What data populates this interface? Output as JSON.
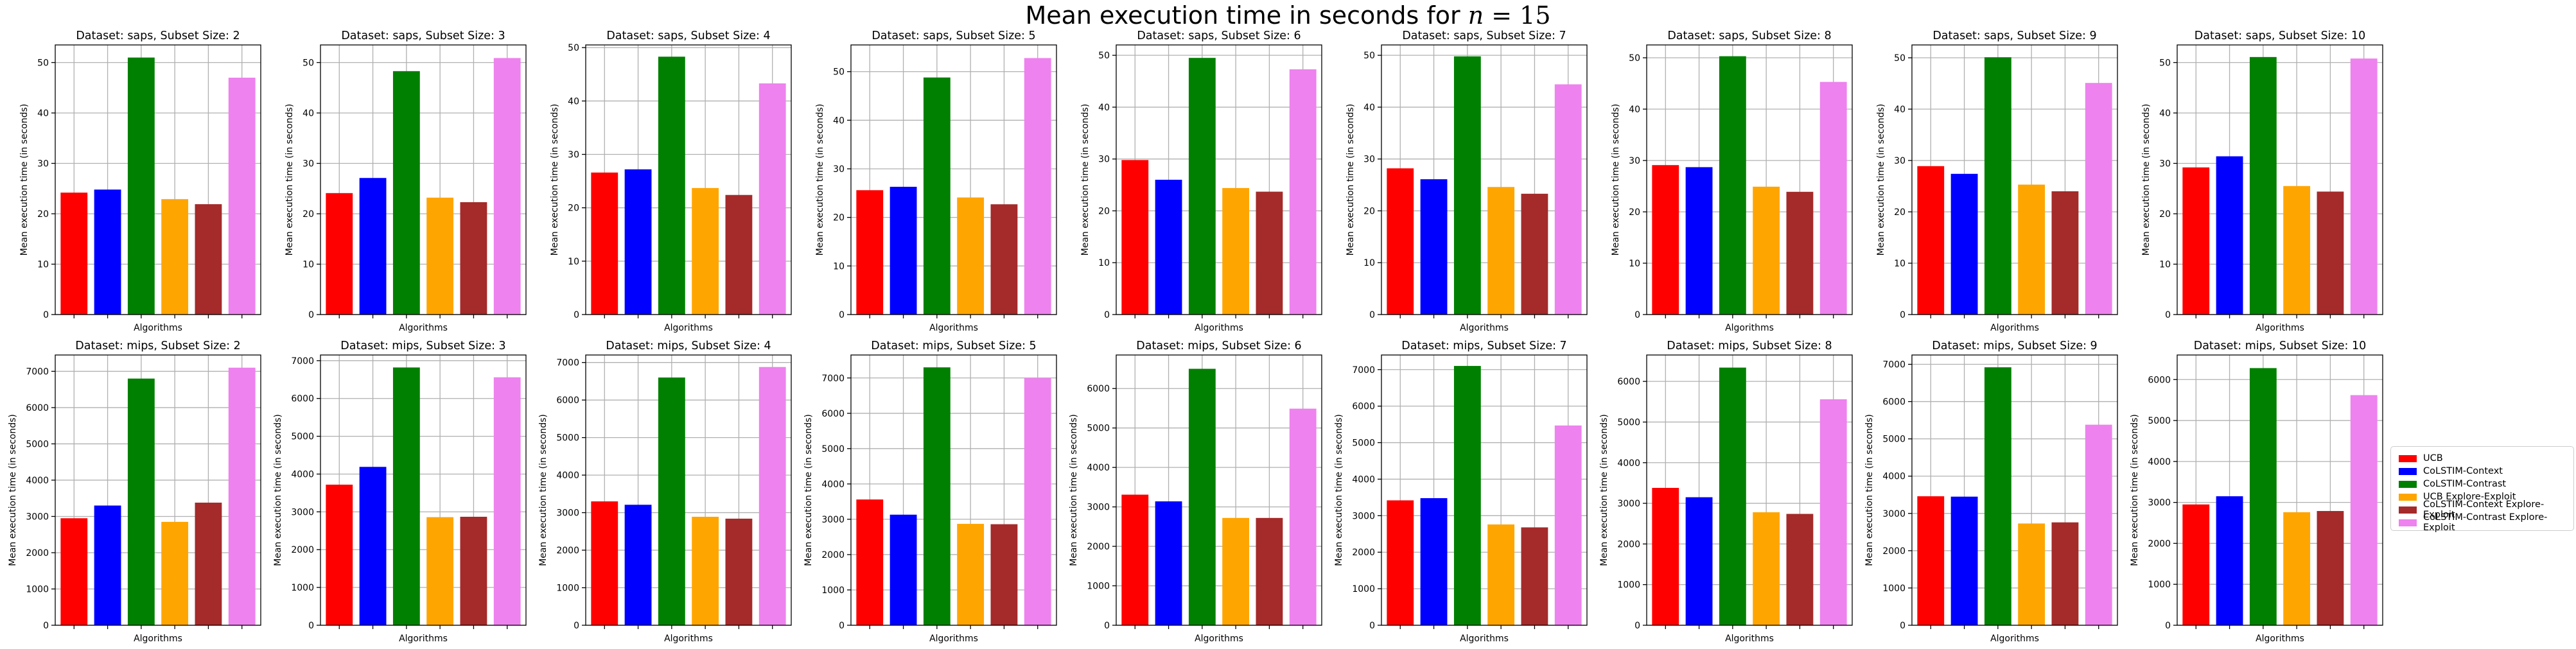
{
  "suptitle": {
    "text": "Mean execution time in seconds for ",
    "math_var": "n",
    "math_eq": " = 15"
  },
  "legend": {
    "placement": "right",
    "items": [
      {
        "label": "UCB",
        "color": "#ff0000"
      },
      {
        "label": "CoLSTIM-Context",
        "color": "#0000ff"
      },
      {
        "label": "CoLSTIM-Contrast",
        "color": "#008000"
      },
      {
        "label": "UCB Explore-Exploit",
        "color": "#ffa500"
      },
      {
        "label": "CoLSTIM-Context Explore-Exploit",
        "color": "#a52a2a"
      },
      {
        "label": "CoLSTIM-Contrast Explore-Exploit",
        "color": "#ee82ee"
      }
    ]
  },
  "chart_data": [
    {
      "type": "bar",
      "title": "Dataset: saps, Subset Size: 2",
      "xlabel": "Algorithms",
      "ylabel": "Mean execution time (in seconds)",
      "ylim": [
        0,
        53.5
      ],
      "yticks": [
        0,
        10,
        20,
        30,
        40,
        50
      ],
      "grid": true,
      "values": [
        24.2,
        24.8,
        51.0,
        22.9,
        21.9,
        47.0
      ]
    },
    {
      "type": "bar",
      "title": "Dataset: saps, Subset Size: 3",
      "xlabel": "Algorithms",
      "ylabel": "Mean execution time (in seconds)",
      "ylim": [
        0,
        53.5
      ],
      "yticks": [
        0,
        10,
        20,
        30,
        40,
        50
      ],
      "grid": true,
      "values": [
        24.1,
        27.1,
        48.3,
        23.2,
        22.3,
        50.9
      ]
    },
    {
      "type": "bar",
      "title": "Dataset: saps, Subset Size: 4",
      "xlabel": "Algorithms",
      "ylabel": "Mean execution time (in seconds)",
      "ylim": [
        0,
        50.5
      ],
      "yticks": [
        0,
        10,
        20,
        30,
        40,
        50
      ],
      "grid": true,
      "values": [
        26.6,
        27.2,
        48.3,
        23.7,
        22.4,
        43.3
      ]
    },
    {
      "type": "bar",
      "title": "Dataset: saps, Subset Size: 5",
      "xlabel": "Algorithms",
      "ylabel": "Mean execution time (in seconds)",
      "ylim": [
        0,
        55.5
      ],
      "yticks": [
        0,
        10,
        20,
        30,
        40,
        50
      ],
      "grid": true,
      "values": [
        25.6,
        26.3,
        48.8,
        24.1,
        22.7,
        52.8
      ]
    },
    {
      "type": "bar",
      "title": "Dataset: saps, Subset Size: 6",
      "xlabel": "Algorithms",
      "ylabel": "Mean execution time (in seconds)",
      "ylim": [
        0,
        52
      ],
      "yticks": [
        0,
        10,
        20,
        30,
        40,
        50
      ],
      "grid": true,
      "values": [
        29.8,
        26.0,
        49.5,
        24.4,
        23.7,
        47.3
      ]
    },
    {
      "type": "bar",
      "title": "Dataset: saps, Subset Size: 7",
      "xlabel": "Algorithms",
      "ylabel": "Mean execution time (in seconds)",
      "ylim": [
        0,
        52
      ],
      "yticks": [
        0,
        10,
        20,
        30,
        40,
        50
      ],
      "grid": true,
      "values": [
        28.2,
        26.1,
        49.8,
        24.6,
        23.3,
        44.4
      ]
    },
    {
      "type": "bar",
      "title": "Dataset: saps, Subset Size: 8",
      "xlabel": "Algorithms",
      "ylabel": "Mean execution time (in seconds)",
      "ylim": [
        0,
        52.5
      ],
      "yticks": [
        0,
        10,
        20,
        30,
        40,
        50
      ],
      "grid": true,
      "values": [
        29.1,
        28.7,
        50.3,
        24.9,
        23.9,
        45.3
      ]
    },
    {
      "type": "bar",
      "title": "Dataset: saps, Subset Size: 9",
      "xlabel": "Algorithms",
      "ylabel": "Mean execution time (in seconds)",
      "ylim": [
        0,
        52.5
      ],
      "yticks": [
        0,
        10,
        20,
        30,
        40,
        50
      ],
      "grid": true,
      "values": [
        28.9,
        27.4,
        50.1,
        25.3,
        24.0,
        45.1
      ]
    },
    {
      "type": "bar",
      "title": "Dataset: saps, Subset Size: 10",
      "xlabel": "Algorithms",
      "ylabel": "Mean execution time (in seconds)",
      "ylim": [
        0,
        53.5
      ],
      "yticks": [
        0,
        10,
        20,
        30,
        40,
        50
      ],
      "grid": true,
      "values": [
        29.2,
        31.4,
        51.1,
        25.5,
        24.4,
        50.8
      ]
    },
    {
      "type": "bar",
      "title": "Dataset: mips, Subset Size: 2",
      "xlabel": "Algorithms",
      "ylabel": "Mean execution time (in seconds)",
      "ylim": [
        0,
        7450
      ],
      "yticks": [
        0,
        1000,
        2000,
        3000,
        4000,
        5000,
        6000,
        7000
      ],
      "grid": true,
      "values": [
        2950,
        3300,
        6800,
        2850,
        3380,
        7100
      ]
    },
    {
      "type": "bar",
      "title": "Dataset: mips, Subset Size: 3",
      "xlabel": "Algorithms",
      "ylabel": "Mean execution time (in seconds)",
      "ylim": [
        0,
        7150
      ],
      "yticks": [
        0,
        1000,
        2000,
        3000,
        4000,
        5000,
        6000,
        7000
      ],
      "grid": true,
      "values": [
        3720,
        4190,
        6820,
        2860,
        2870,
        6560
      ]
    },
    {
      "type": "bar",
      "title": "Dataset: mips, Subset Size: 4",
      "xlabel": "Algorithms",
      "ylabel": "Mean execution time (in seconds)",
      "ylim": [
        0,
        7200
      ],
      "yticks": [
        0,
        1000,
        2000,
        3000,
        4000,
        5000,
        6000,
        7000
      ],
      "grid": true,
      "values": [
        3300,
        3210,
        6600,
        2890,
        2840,
        6880
      ]
    },
    {
      "type": "bar",
      "title": "Dataset: mips, Subset Size: 5",
      "xlabel": "Algorithms",
      "ylabel": "Mean execution time (in seconds)",
      "ylim": [
        0,
        7650
      ],
      "yticks": [
        0,
        1000,
        2000,
        3000,
        4000,
        5000,
        6000,
        7000
      ],
      "grid": true,
      "values": [
        3560,
        3130,
        7300,
        2870,
        2860,
        7000
      ]
    },
    {
      "type": "bar",
      "title": "Dataset: mips, Subset Size: 6",
      "xlabel": "Algorithms",
      "ylabel": "Mean execution time (in seconds)",
      "ylim": [
        0,
        6850
      ],
      "yticks": [
        0,
        1000,
        2000,
        3000,
        4000,
        5000,
        6000
      ],
      "grid": true,
      "values": [
        3310,
        3140,
        6500,
        2720,
        2720,
        5490
      ]
    },
    {
      "type": "bar",
      "title": "Dataset: mips, Subset Size: 7",
      "xlabel": "Algorithms",
      "ylabel": "Mean execution time (in seconds)",
      "ylim": [
        0,
        7400
      ],
      "yticks": [
        0,
        1000,
        2000,
        3000,
        4000,
        5000,
        6000,
        7000
      ],
      "grid": true,
      "values": [
        3420,
        3480,
        7100,
        2760,
        2680,
        5470
      ]
    },
    {
      "type": "bar",
      "title": "Dataset: mips, Subset Size: 8",
      "xlabel": "Algorithms",
      "ylabel": "Mean execution time (in seconds)",
      "ylim": [
        0,
        6650
      ],
      "yticks": [
        0,
        1000,
        2000,
        3000,
        4000,
        5000,
        6000
      ],
      "grid": true,
      "values": [
        3380,
        3150,
        6340,
        2780,
        2740,
        5560
      ]
    },
    {
      "type": "bar",
      "title": "Dataset: mips, Subset Size: 9",
      "xlabel": "Algorithms",
      "ylabel": "Mean execution time (in seconds)",
      "ylim": [
        0,
        7250
      ],
      "yticks": [
        0,
        1000,
        2000,
        3000,
        4000,
        5000,
        6000,
        7000
      ],
      "grid": true,
      "values": [
        3460,
        3450,
        6920,
        2730,
        2760,
        5380
      ]
    },
    {
      "type": "bar",
      "title": "Dataset: mips, Subset Size: 10",
      "xlabel": "Algorithms",
      "ylabel": "Mean execution time (in seconds)",
      "ylim": [
        0,
        6600
      ],
      "yticks": [
        0,
        1000,
        2000,
        3000,
        4000,
        5000,
        6000
      ],
      "grid": true,
      "values": [
        2950,
        3150,
        6280,
        2760,
        2790,
        5620
      ]
    }
  ]
}
